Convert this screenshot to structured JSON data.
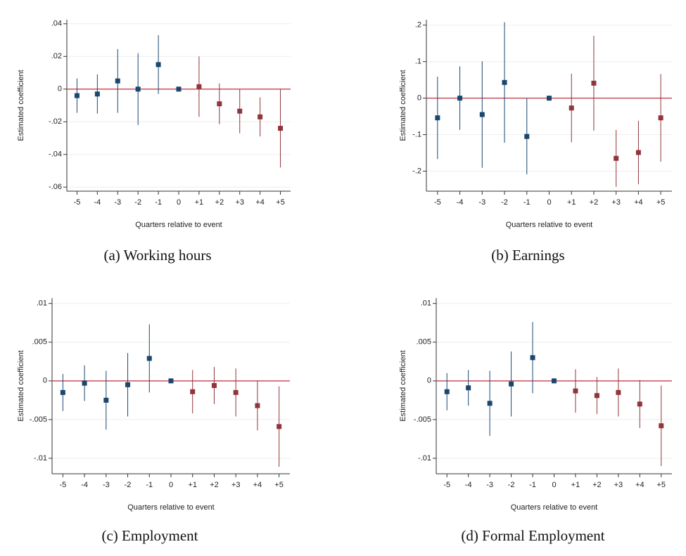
{
  "chart_data": [
    {
      "type": "errorbar",
      "caption": "(a) Working hours",
      "y_label": "Estimated coefficient",
      "x_label": "Quarters relative to event",
      "categories": [
        "-5",
        "-4",
        "-3",
        "-2",
        "-1",
        "0",
        "+1",
        "+2",
        "+3",
        "+4",
        "+5"
      ],
      "series": [
        {
          "color": "#1a476f",
          "values": [
            -0.004,
            -0.003,
            0.005,
            0,
            0.015,
            0,
            null,
            null,
            null,
            null,
            null
          ],
          "errors": [
            0.0105,
            0.012,
            0.0195,
            0.022,
            0.018,
            null,
            null,
            null,
            null,
            null,
            null
          ]
        },
        {
          "color": "#90353b",
          "values": [
            null,
            null,
            null,
            null,
            null,
            null,
            0.0015,
            -0.009,
            -0.0135,
            -0.017,
            -0.024
          ],
          "errors": [
            null,
            null,
            null,
            null,
            null,
            null,
            0.0185,
            0.0125,
            0.0135,
            0.012,
            0.024
          ]
        }
      ],
      "reference_line": 0,
      "reference_color": "#c8505c",
      "ylim": [
        -0.0625,
        0.0425
      ],
      "yticks": [
        {
          "value": 0.04,
          "label": ".04"
        },
        {
          "value": 0.02,
          "label": ".02"
        },
        0,
        {
          "value": -0.02,
          "label": "-.02"
        },
        {
          "value": -0.04,
          "label": "-.04"
        },
        {
          "value": -0.06,
          "label": "-.06"
        }
      ],
      "grid": true
    },
    {
      "type": "errorbar",
      "caption": "(b) Earnings",
      "y_label": "Estimated coefficient",
      "x_label": "Quarters relative to event",
      "categories": [
        "-5",
        "-4",
        "-3",
        "-2",
        "-1",
        "0",
        "+1",
        "+2",
        "+3",
        "+4",
        "+5"
      ],
      "series": [
        {
          "color": "#1a476f",
          "values": [
            -0.054,
            0,
            -0.045,
            0.043,
            -0.105,
            0,
            null,
            null,
            null,
            null,
            null
          ],
          "errors": [
            0.113,
            0.087,
            0.146,
            0.165,
            0.104,
            null,
            null,
            null,
            null,
            null,
            null
          ]
        },
        {
          "color": "#90353b",
          "values": [
            null,
            null,
            null,
            null,
            null,
            null,
            -0.027,
            0.041,
            -0.165,
            -0.149,
            -0.054
          ],
          "errors": [
            null,
            null,
            null,
            null,
            null,
            null,
            0.094,
            0.13,
            0.078,
            0.087,
            0.12
          ]
        }
      ],
      "reference_line": 0,
      "reference_color": "#c8505c",
      "ylim": [
        -0.255,
        0.215
      ],
      "yticks": [
        {
          "value": 0.2,
          "label": ".2"
        },
        {
          "value": 0.1,
          "label": ".1"
        },
        0,
        {
          "value": -0.1,
          "label": "-.1"
        },
        {
          "value": -0.2,
          "label": "-.2"
        }
      ],
      "grid": true
    },
    {
      "type": "errorbar",
      "caption": "(c) Employment",
      "y_label": "Estimated coefficient",
      "x_label": "Quarters relative to event",
      "categories": [
        "-5",
        "-4",
        "-3",
        "-2",
        "-1",
        "0",
        "+1",
        "+2",
        "+3",
        "+4",
        "+5"
      ],
      "series": [
        {
          "color": "#1a476f",
          "values": [
            -0.0015,
            -0.0003,
            -0.0025,
            -0.0005,
            0.0029,
            0,
            null,
            null,
            null,
            null,
            null
          ],
          "errors": [
            0.0024,
            0.0023,
            0.0038,
            0.0041,
            0.0044,
            null,
            null,
            null,
            null,
            null,
            null
          ]
        },
        {
          "color": "#90353b",
          "values": [
            null,
            null,
            null,
            null,
            null,
            null,
            -0.0014,
            -0.0006,
            -0.0015,
            -0.0032,
            -0.0059
          ],
          "errors": [
            null,
            null,
            null,
            null,
            null,
            null,
            0.0028,
            0.0024,
            0.0031,
            0.0032,
            0.0052
          ]
        }
      ],
      "reference_line": 0,
      "reference_color": "#c8505c",
      "ylim": [
        -0.012,
        0.0107
      ],
      "yticks": [
        {
          "value": 0.01,
          "label": ".01"
        },
        {
          "value": 0.005,
          "label": ".005"
        },
        0,
        {
          "value": -0.005,
          "label": "-.005"
        },
        {
          "value": -0.01,
          "label": "-.01"
        }
      ],
      "grid": true
    },
    {
      "type": "errorbar",
      "caption": "(d) Formal Employment",
      "y_label": "Estimated coefficient",
      "x_label": "Quarters relative to event",
      "categories": [
        "-5",
        "-4",
        "-3",
        "-2",
        "-1",
        "0",
        "+1",
        "+2",
        "+3",
        "+4",
        "+5"
      ],
      "series": [
        {
          "color": "#1a476f",
          "values": [
            -0.0014,
            -0.0009,
            -0.0029,
            -0.0004,
            0.003,
            0,
            null,
            null,
            null,
            null,
            null
          ],
          "errors": [
            0.0024,
            0.0023,
            0.0042,
            0.0042,
            0.0046,
            null,
            null,
            null,
            null,
            null,
            null
          ]
        },
        {
          "color": "#90353b",
          "values": [
            null,
            null,
            null,
            null,
            null,
            null,
            -0.0013,
            -0.0019,
            -0.0015,
            -0.003,
            -0.0058
          ],
          "errors": [
            null,
            null,
            null,
            null,
            null,
            null,
            0.0028,
            0.0024,
            0.0031,
            0.0031,
            0.0052
          ]
        }
      ],
      "reference_line": 0,
      "reference_color": "#c8505c",
      "ylim": [
        -0.012,
        0.0107
      ],
      "yticks": [
        {
          "value": 0.01,
          "label": ".01"
        },
        {
          "value": 0.005,
          "label": ".005"
        },
        0,
        {
          "value": -0.005,
          "label": "-.005"
        },
        {
          "value": -0.01,
          "label": "-.01"
        }
      ],
      "grid": true
    }
  ]
}
